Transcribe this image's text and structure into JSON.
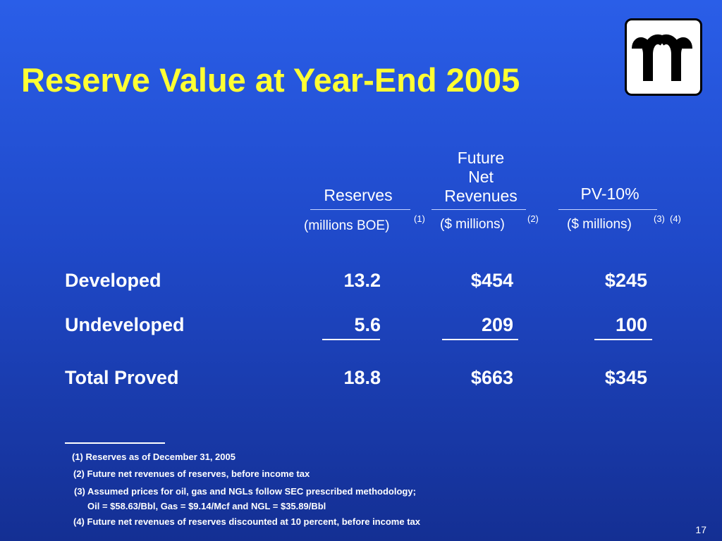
{
  "title": "Reserve Value at Year-End 2005",
  "columns": {
    "reserves": {
      "header": "Reserves",
      "unit": "(millions BOE)",
      "note": "(1)"
    },
    "future_net_revenues": {
      "header_lines": [
        "Future",
        "Net",
        "Revenues"
      ],
      "unit": "($ millions)",
      "note": "(2)"
    },
    "pv10": {
      "header": "PV-10%",
      "unit": "($ millions)",
      "notes": [
        "(3)",
        "(4)"
      ]
    }
  },
  "rows": [
    {
      "label": "Developed",
      "reserves": "13.2",
      "fnr": "$454",
      "pv10": "$245"
    },
    {
      "label": "Undeveloped",
      "reserves": "5.6",
      "fnr": "209",
      "pv10": "100"
    },
    {
      "label": "Total Proved",
      "reserves": "18.8",
      "fnr": "$663",
      "pv10": "$345"
    }
  ],
  "footnotes": [
    "(1) Reserves as of December 31, 2005",
    "(2) Future net revenues of reserves, before income tax",
    "(3) Assumed prices for oil, gas and NGLs follow SEC prescribed methodology;",
    "Oil = $58.63/Bbl,  Gas = $9.14/Mcf  and NGL = $35.89/Bbl",
    "(4) Future net revenues of reserves discounted at 10 percent, before income tax"
  ],
  "page_number": "17",
  "logo_icon": "company-logo-icon",
  "colors": {
    "title": "#ffff33",
    "background_top": "#2a5ee8",
    "background_bottom": "#142f93"
  }
}
